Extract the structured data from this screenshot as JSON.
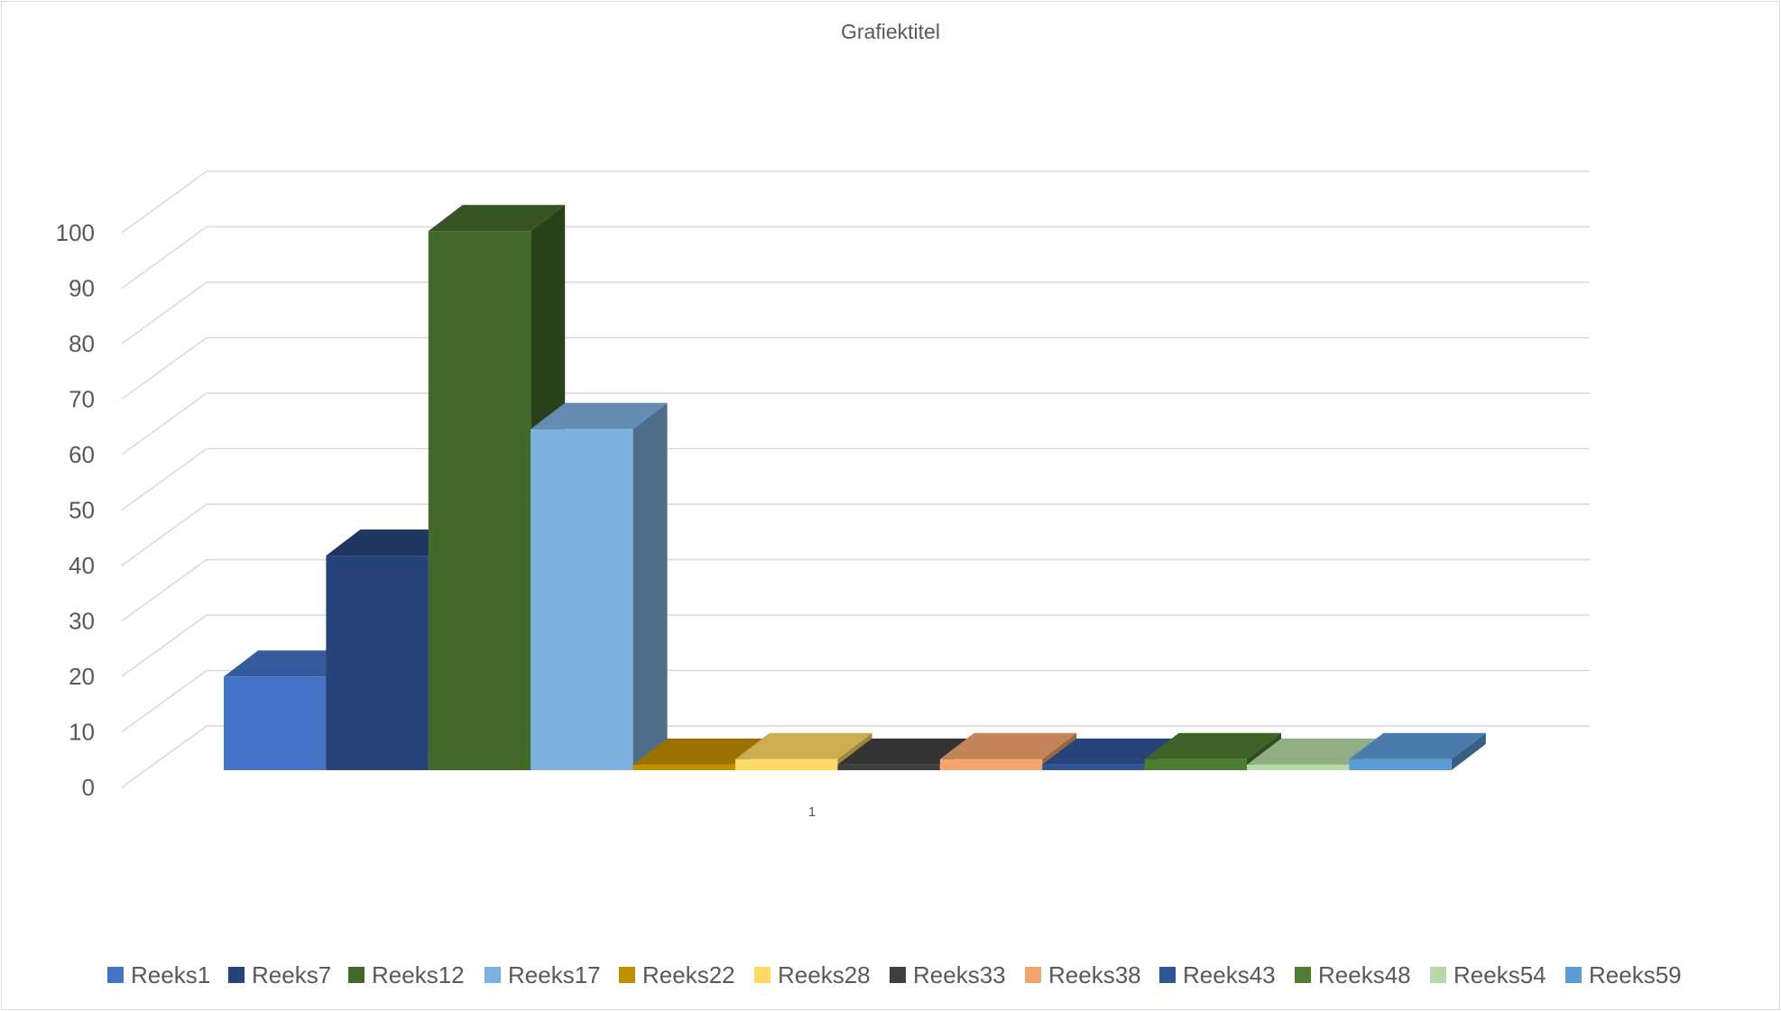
{
  "chart_data": {
    "type": "bar",
    "variant": "3d-clustered-column",
    "title": "Grafiektitel",
    "categories": [
      "1"
    ],
    "ylim": [
      0,
      100
    ],
    "yticks": [
      0,
      10,
      20,
      30,
      40,
      50,
      60,
      70,
      80,
      90,
      100
    ],
    "grid": true,
    "legend": "bottom",
    "series": [
      {
        "name": "Reeks1",
        "values": [
          17
        ],
        "color": "#4472C4"
      },
      {
        "name": "Reeks7",
        "values": [
          39
        ],
        "color": "#264478"
      },
      {
        "name": "Reeks12",
        "values": [
          98
        ],
        "color": "#43682B"
      },
      {
        "name": "Reeks17",
        "values": [
          62
        ],
        "color": "#7EB0E0"
      },
      {
        "name": "Reeks22",
        "values": [
          1
        ],
        "color": "#BF8F00"
      },
      {
        "name": "Reeks28",
        "values": [
          2
        ],
        "color": "#FFD966"
      },
      {
        "name": "Reeks33",
        "values": [
          1
        ],
        "color": "#404040"
      },
      {
        "name": "Reeks38",
        "values": [
          2
        ],
        "color": "#F4A46E"
      },
      {
        "name": "Reeks43",
        "values": [
          1
        ],
        "color": "#2F5597"
      },
      {
        "name": "Reeks48",
        "values": [
          2
        ],
        "color": "#4E7C32"
      },
      {
        "name": "Reeks54",
        "values": [
          1
        ],
        "color": "#B7D9A6"
      },
      {
        "name": "Reeks59",
        "values": [
          2
        ],
        "color": "#5B9BD5"
      }
    ]
  }
}
